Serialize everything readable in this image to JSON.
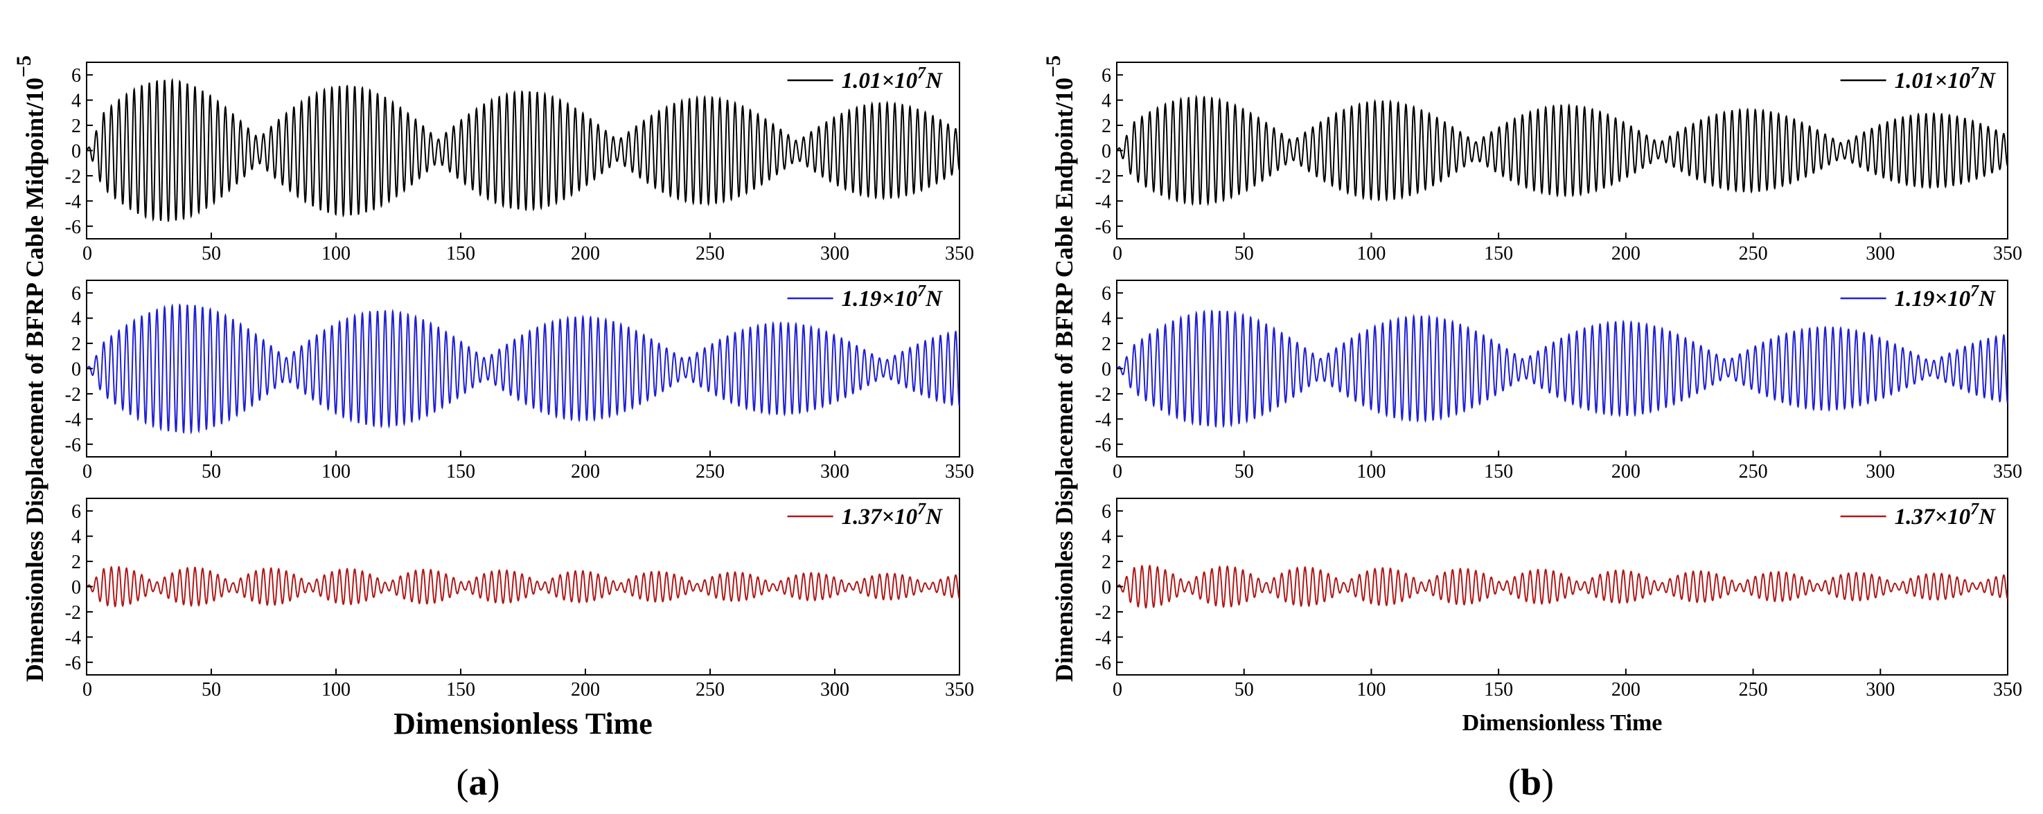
{
  "chart_data": [
    {
      "type": "line",
      "panel": "(a)",
      "caption_open": "(",
      "caption_letter": "a",
      "caption_close": ")",
      "ylabel": "Dimensionless Displacement of BFRP Cable Midpoint/10",
      "ylabel_exponent": "−5",
      "xlabel": "Dimensionless Time",
      "xlim": [
        0,
        350
      ],
      "ylim": [
        -7,
        7
      ],
      "xticks": [
        0,
        50,
        100,
        150,
        200,
        250,
        300,
        350
      ],
      "yticks": [
        -6,
        -4,
        -2,
        0,
        2,
        4,
        6
      ],
      "series": [
        {
          "name": "1.01×10^7 N",
          "legend_base": "1.01×10",
          "legend_exp": "7",
          "legend_unit": "N",
          "color": "#000000",
          "amplitude_max": 5.8,
          "amplitude_late": 3.6,
          "envelope_peaks": [
            33,
            105,
            176,
            248,
            320
          ]
        },
        {
          "name": "1.19×10^7 N",
          "legend_base": "1.19×10",
          "legend_exp": "7",
          "legend_unit": "N",
          "color": "#1f1fd6",
          "amplitude_max": 5.3,
          "amplitude_late": 3.2,
          "envelope_peaks": [
            40,
            120,
            200,
            280
          ]
        },
        {
          "name": "1.37×10^7 N",
          "legend_base": "1.37×10",
          "legend_exp": "7",
          "legend_unit": "N",
          "color": "#b01818",
          "amplitude_max": 1.6,
          "amplitude_late": 1.0,
          "envelope_peaks": [
            12,
            43,
            73,
            102,
            132,
            162
          ]
        }
      ]
    },
    {
      "type": "line",
      "panel": "(b)",
      "caption_open": "(",
      "caption_letter": "b",
      "caption_close": ")",
      "ylabel": "Dimensionless Displacement of BFRP Cable Endpoint/10",
      "ylabel_exponent": "−5",
      "xlabel": "Dimensionless Time",
      "xlim": [
        0,
        350
      ],
      "ylim": [
        -7,
        7
      ],
      "xticks": [
        0,
        50,
        100,
        150,
        200,
        250,
        300,
        350
      ],
      "yticks": [
        -6,
        -4,
        -2,
        0,
        2,
        4,
        6
      ],
      "series": [
        {
          "name": "1.01×10^7 N",
          "legend_base": "1.01×10",
          "legend_exp": "7",
          "legend_unit": "N",
          "color": "#000000",
          "amplitude_max": 4.4,
          "amplitude_late": 2.8,
          "envelope_peaks": [
            33,
            105,
            176,
            248,
            320
          ]
        },
        {
          "name": "1.19×10^7 N",
          "legend_base": "1.19×10",
          "legend_exp": "7",
          "legend_unit": "N",
          "color": "#1f1fd6",
          "amplitude_max": 4.8,
          "amplitude_late": 2.9,
          "envelope_peaks": [
            40,
            120,
            200,
            280
          ]
        },
        {
          "name": "1.37×10^7 N",
          "legend_base": "1.37×10",
          "legend_exp": "7",
          "legend_unit": "N",
          "color": "#b01818",
          "amplitude_max": 1.7,
          "amplitude_late": 1.0,
          "envelope_peaks": [
            12,
            43,
            73,
            102,
            132,
            162
          ]
        }
      ]
    }
  ]
}
